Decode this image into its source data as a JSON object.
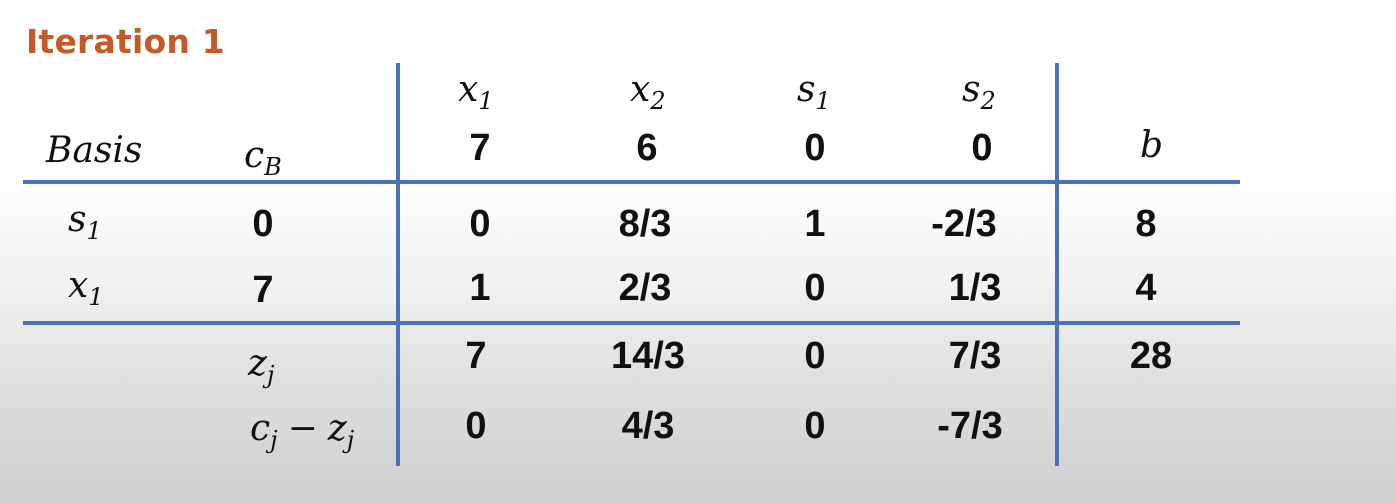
{
  "title": "Iteration 1",
  "header": {
    "variables": [
      {
        "name": "x",
        "sub": "1"
      },
      {
        "name": "x",
        "sub": "2"
      },
      {
        "name": "s",
        "sub": "1"
      },
      {
        "name": "s",
        "sub": "2"
      }
    ],
    "basis_label": "Basis",
    "cb": {
      "name": "c",
      "sub": "B"
    },
    "costs": [
      "7",
      "6",
      "0",
      "0"
    ],
    "b_label": "b"
  },
  "rows": [
    {
      "basis": {
        "name": "s",
        "sub": "1"
      },
      "cb": "0",
      "values": [
        "0",
        "8/3",
        "1",
        "-2/3"
      ],
      "b": "8"
    },
    {
      "basis": {
        "name": "x",
        "sub": "1"
      },
      "cb": "7",
      "values": [
        "1",
        "2/3",
        "0",
        "1/3"
      ],
      "b": "4"
    }
  ],
  "zj": {
    "label": {
      "name": "z",
      "sub": "j"
    },
    "values": [
      "7",
      "14/3",
      "0",
      "7/3"
    ],
    "b": "28"
  },
  "cj_zj": {
    "label": {
      "c": "c",
      "c_sub": "j",
      "op": "−",
      "z": "z",
      "z_sub": "j"
    },
    "values": [
      "0",
      "4/3",
      "0",
      "-7/3"
    ]
  },
  "colors": {
    "title": "#c55a28",
    "rule": "#4a72b5"
  }
}
